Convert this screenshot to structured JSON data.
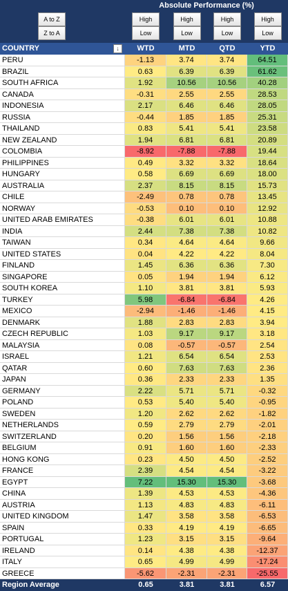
{
  "sort_buttons": {
    "ascending": "A to Z",
    "descending": "Z to A"
  },
  "header": {
    "title": "Absolute Performance (%)"
  },
  "filter_buttons": [
    {
      "high": "High",
      "low": "Low"
    },
    {
      "high": "High",
      "low": "Low"
    },
    {
      "high": "High",
      "low": "Low"
    },
    {
      "high": "High",
      "low": "Low"
    }
  ],
  "color_scale": {
    "low": "#f8696b",
    "mid": "#ffeb84",
    "high": "#63be7b"
  },
  "table": {
    "columns": [
      "COUNTRY",
      "WTD",
      "MTD",
      "QTD",
      "YTD"
    ],
    "rows": [
      [
        "PERU",
        "-1.13",
        "3.74",
        "3.74",
        "64.51"
      ],
      [
        "BRAZIL",
        "0.63",
        "6.39",
        "6.39",
        "61.62"
      ],
      [
        "SOUTH AFRICA",
        "1.92",
        "10.56",
        "10.56",
        "40.28"
      ],
      [
        "CANADA",
        "-0.31",
        "2.55",
        "2.55",
        "28.53"
      ],
      [
        "INDONESIA",
        "2.17",
        "6.46",
        "6.46",
        "28.05"
      ],
      [
        "RUSSIA",
        "-0.44",
        "1.85",
        "1.85",
        "25.31"
      ],
      [
        "THAILAND",
        "0.83",
        "5.41",
        "5.41",
        "23.58"
      ],
      [
        "NEW ZEALAND",
        "1.94",
        "6.81",
        "6.81",
        "20.89"
      ],
      [
        "COLOMBIA",
        "-8.92",
        "-7.88",
        "-7.88",
        "19.44"
      ],
      [
        "PHILIPPINES",
        "0.49",
        "3.32",
        "3.32",
        "18.64"
      ],
      [
        "HUNGARY",
        "0.58",
        "6.69",
        "6.69",
        "18.00"
      ],
      [
        "AUSTRALIA",
        "2.37",
        "8.15",
        "8.15",
        "15.73"
      ],
      [
        "CHILE",
        "-2.49",
        "0.78",
        "0.78",
        "13.45"
      ],
      [
        "NORWAY",
        "-0.53",
        "0.10",
        "0.10",
        "12.92"
      ],
      [
        "UNITED ARAB EMIRATES",
        "-0.38",
        "6.01",
        "6.01",
        "10.88"
      ],
      [
        "INDIA",
        "2.44",
        "7.38",
        "7.38",
        "10.82"
      ],
      [
        "TAIWAN",
        "0.34",
        "4.64",
        "4.64",
        "9.66"
      ],
      [
        "UNITED STATES",
        "0.04",
        "4.22",
        "4.22",
        "8.04"
      ],
      [
        "FINLAND",
        "1.45",
        "6.36",
        "6.36",
        "7.30"
      ],
      [
        "SINGAPORE",
        "0.05",
        "1.94",
        "1.94",
        "6.12"
      ],
      [
        "SOUTH KOREA",
        "1.10",
        "3.81",
        "3.81",
        "5.93"
      ],
      [
        "TURKEY",
        "5.98",
        "-6.84",
        "-6.84",
        "4.26"
      ],
      [
        "MEXICO",
        "-2.94",
        "-1.46",
        "-1.46",
        "4.15"
      ],
      [
        "DENMARK",
        "1.88",
        "2.83",
        "2.83",
        "3.94"
      ],
      [
        "CZECH REPUBLIC",
        "1.03",
        "9.17",
        "9.17",
        "3.18"
      ],
      [
        "MALAYSIA",
        "0.08",
        "-0.57",
        "-0.57",
        "2.54"
      ],
      [
        "ISRAEL",
        "1.21",
        "6.54",
        "6.54",
        "2.53"
      ],
      [
        "QATAR",
        "0.60",
        "7.63",
        "7.63",
        "2.36"
      ],
      [
        "JAPAN",
        "0.36",
        "2.33",
        "2.33",
        "1.35"
      ],
      [
        "GERMANY",
        "2.22",
        "5.71",
        "5.71",
        "-0.32"
      ],
      [
        "POLAND",
        "0.53",
        "5.40",
        "5.40",
        "-0.95"
      ],
      [
        "SWEDEN",
        "1.20",
        "2.62",
        "2.62",
        "-1.82"
      ],
      [
        "NETHERLANDS",
        "0.59",
        "2.79",
        "2.79",
        "-2.01"
      ],
      [
        "SWITZERLAND",
        "0.20",
        "1.56",
        "1.56",
        "-2.18"
      ],
      [
        "BELGIUM",
        "0.91",
        "1.60",
        "1.60",
        "-2.33"
      ],
      [
        "HONG KONG",
        "0.23",
        "4.50",
        "4.50",
        "-2.52"
      ],
      [
        "FRANCE",
        "2.39",
        "4.54",
        "4.54",
        "-3.22"
      ],
      [
        "EGYPT",
        "7.22",
        "15.30",
        "15.30",
        "-3.68"
      ],
      [
        "CHINA",
        "1.39",
        "4.53",
        "4.53",
        "-4.36"
      ],
      [
        "AUSTRIA",
        "1.13",
        "4.83",
        "4.83",
        "-6.11"
      ],
      [
        "UNITED KINGDOM",
        "1.47",
        "3.58",
        "3.58",
        "-6.53"
      ],
      [
        "SPAIN",
        "0.33",
        "4.19",
        "4.19",
        "-6.65"
      ],
      [
        "PORTUGAL",
        "1.23",
        "3.15",
        "3.15",
        "-9.64"
      ],
      [
        "IRELAND",
        "0.14",
        "4.38",
        "4.38",
        "-12.37"
      ],
      [
        "ITALY",
        "0.65",
        "4.99",
        "4.99",
        "-17.24"
      ],
      [
        "GREECE",
        "-5.62",
        "-2.31",
        "-2.31",
        "-25.55"
      ]
    ],
    "footer": [
      "Region Average",
      "0.65",
      "3.81",
      "3.81",
      "6.57"
    ]
  }
}
